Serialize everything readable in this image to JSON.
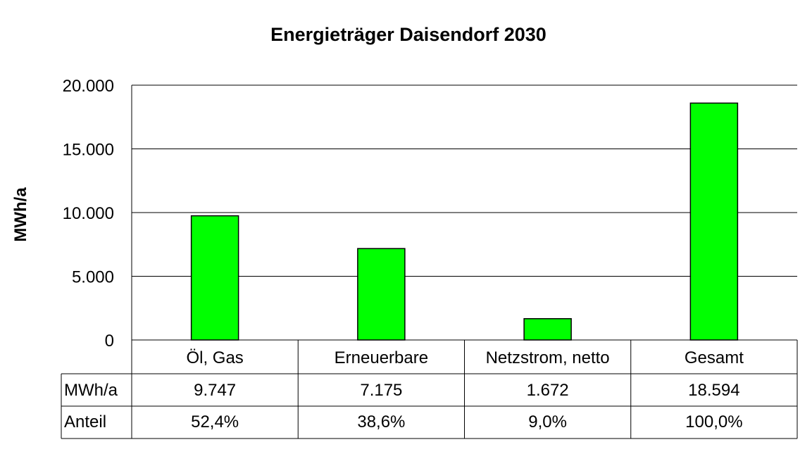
{
  "chart_data": {
    "type": "bar",
    "title": "Energieträger Daisendorf 2030",
    "ylabel": "MWh/a",
    "xlabel": "",
    "categories": [
      "Öl, Gas",
      "Erneuerbare",
      "Netzstrom, netto",
      "Gesamt"
    ],
    "values": [
      9747,
      7175,
      1672,
      18594
    ],
    "ylim": [
      0,
      20000
    ],
    "ytick_labels": [
      "0",
      "5.000",
      "10.000",
      "15.000",
      "20.000"
    ],
    "grid": true,
    "bar_color": "#00ff00",
    "data_table": {
      "rows": [
        {
          "label": "MWh/a",
          "values": [
            "9.747",
            "7.175",
            "1.672",
            "18.594"
          ]
        },
        {
          "label": "Anteil",
          "values": [
            "52,4%",
            "38,6%",
            "9,0%",
            "100,0%"
          ]
        }
      ]
    }
  }
}
